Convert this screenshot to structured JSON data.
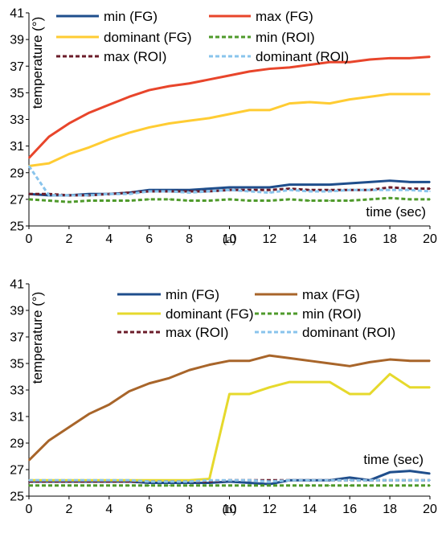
{
  "chart_data": [
    {
      "type": "line",
      "caption": "(a)",
      "ylabel": "temperature (°)",
      "xlabel": "time (sec)",
      "xlim": [
        0,
        20
      ],
      "ylim": [
        25,
        41
      ],
      "xticks": [
        0,
        2,
        4,
        6,
        8,
        10,
        12,
        14,
        16,
        18,
        20
      ],
      "yticks": [
        25,
        27,
        29,
        31,
        33,
        35,
        37,
        39,
        41
      ],
      "grid": false,
      "legend_position": "top",
      "x": [
        0,
        1,
        2,
        3,
        4,
        5,
        6,
        7,
        8,
        9,
        10,
        11,
        12,
        13,
        14,
        15,
        16,
        17,
        18,
        19,
        20
      ],
      "series": [
        {
          "name": "min (FG)",
          "color": "#1f4e8c",
          "dash": "solid",
          "values": [
            27.4,
            27.3,
            27.3,
            27.4,
            27.4,
            27.5,
            27.7,
            27.7,
            27.7,
            27.8,
            27.9,
            27.9,
            27.9,
            28.1,
            28.1,
            28.1,
            28.2,
            28.3,
            28.4,
            28.3,
            28.3
          ]
        },
        {
          "name": "max (FG)",
          "color": "#e8452b",
          "dash": "solid",
          "values": [
            30.1,
            31.7,
            32.7,
            33.5,
            34.1,
            34.7,
            35.2,
            35.5,
            35.7,
            36.0,
            36.3,
            36.6,
            36.8,
            36.9,
            37.1,
            37.3,
            37.3,
            37.5,
            37.6,
            37.6,
            37.7
          ]
        },
        {
          "name": "dominant (FG)",
          "color": "#ffcc33",
          "dash": "solid",
          "values": [
            29.5,
            29.7,
            30.4,
            30.9,
            31.5,
            32.0,
            32.4,
            32.7,
            32.9,
            33.1,
            33.4,
            33.7,
            33.7,
            34.2,
            34.3,
            34.2,
            34.5,
            34.7,
            34.9,
            34.9,
            34.9
          ]
        },
        {
          "name": "min (ROI)",
          "color": "#4f9a2b",
          "dash": "dashed",
          "values": [
            27.0,
            26.9,
            26.8,
            26.9,
            26.9,
            26.9,
            27.0,
            27.0,
            26.9,
            26.9,
            27.0,
            26.9,
            26.9,
            27.0,
            26.9,
            26.9,
            26.9,
            27.0,
            27.1,
            27.0,
            27.0
          ]
        },
        {
          "name": "max (ROI)",
          "color": "#6b1c2a",
          "dash": "dashed",
          "values": [
            27.4,
            27.4,
            27.3,
            27.3,
            27.4,
            27.5,
            27.6,
            27.6,
            27.6,
            27.6,
            27.7,
            27.7,
            27.7,
            27.8,
            27.7,
            27.7,
            27.7,
            27.7,
            27.9,
            27.8,
            27.8
          ]
        },
        {
          "name": "dominant (ROI)",
          "color": "#89c4ec",
          "dash": "dashed",
          "values": [
            29.5,
            27.3,
            27.3,
            27.3,
            27.4,
            27.4,
            27.6,
            27.6,
            27.5,
            27.6,
            27.7,
            27.6,
            27.5,
            27.7,
            27.6,
            27.6,
            27.7,
            27.7,
            27.7,
            27.7,
            27.6
          ]
        }
      ]
    },
    {
      "type": "line",
      "caption": "(b)",
      "ylabel": "temperature (°)",
      "xlabel": "time (sec)",
      "xlim": [
        0,
        20
      ],
      "ylim": [
        25,
        41
      ],
      "xticks": [
        0,
        2,
        4,
        6,
        8,
        10,
        12,
        14,
        16,
        18,
        20
      ],
      "yticks": [
        25,
        27,
        29,
        31,
        33,
        35,
        37,
        39,
        41
      ],
      "grid": false,
      "legend_position": "top",
      "x": [
        0,
        1,
        2,
        3,
        4,
        5,
        6,
        7,
        8,
        9,
        10,
        11,
        12,
        13,
        14,
        15,
        16,
        17,
        18,
        19,
        20
      ],
      "series": [
        {
          "name": "min (FG)",
          "color": "#1f4e8c",
          "dash": "solid",
          "values": [
            26.1,
            26.1,
            26.1,
            26.1,
            26.1,
            26.1,
            26.0,
            26.0,
            26.0,
            26.0,
            26.1,
            26.0,
            25.9,
            26.2,
            26.2,
            26.2,
            26.4,
            26.2,
            26.8,
            26.9,
            26.7
          ]
        },
        {
          "name": "max (FG)",
          "color": "#a8652a",
          "dash": "solid",
          "values": [
            27.7,
            29.2,
            30.2,
            31.2,
            31.9,
            32.9,
            33.5,
            33.9,
            34.5,
            34.9,
            35.2,
            35.2,
            35.6,
            35.4,
            35.2,
            35.0,
            34.8,
            35.1,
            35.3,
            35.2,
            35.2
          ]
        },
        {
          "name": "dominant (FG)",
          "color": "#e6d92c",
          "dash": "solid",
          "values": [
            26.2,
            26.2,
            26.2,
            26.2,
            26.2,
            26.2,
            26.2,
            26.2,
            26.2,
            26.3,
            32.7,
            32.7,
            33.2,
            33.6,
            33.6,
            33.6,
            32.7,
            32.7,
            34.2,
            33.2,
            33.2
          ]
        },
        {
          "name": "min (ROI)",
          "color": "#4f9a2b",
          "dash": "dashed",
          "values": [
            25.8,
            25.8,
            25.8,
            25.8,
            25.8,
            25.8,
            25.8,
            25.8,
            25.8,
            25.8,
            25.8,
            25.8,
            25.8,
            25.8,
            25.8,
            25.8,
            25.8,
            25.8,
            25.8,
            25.8,
            25.8
          ]
        },
        {
          "name": "max (ROI)",
          "color": "#6b1c2a",
          "dash": "dashed",
          "values": [
            26.1,
            26.1,
            26.1,
            26.1,
            26.1,
            26.1,
            26.1,
            26.1,
            26.1,
            26.1,
            26.2,
            26.2,
            26.2,
            26.2,
            26.2,
            26.2,
            26.2,
            26.2,
            26.2,
            26.2,
            26.2
          ]
        },
        {
          "name": "dominant (ROI)",
          "color": "#89c4ec",
          "dash": "dashed",
          "values": [
            26.2,
            26.2,
            26.2,
            26.2,
            26.2,
            26.2,
            26.1,
            26.1,
            26.1,
            26.2,
            26.2,
            26.2,
            26.1,
            26.2,
            26.2,
            26.2,
            26.2,
            26.2,
            26.2,
            26.2,
            26.2
          ]
        }
      ]
    }
  ]
}
